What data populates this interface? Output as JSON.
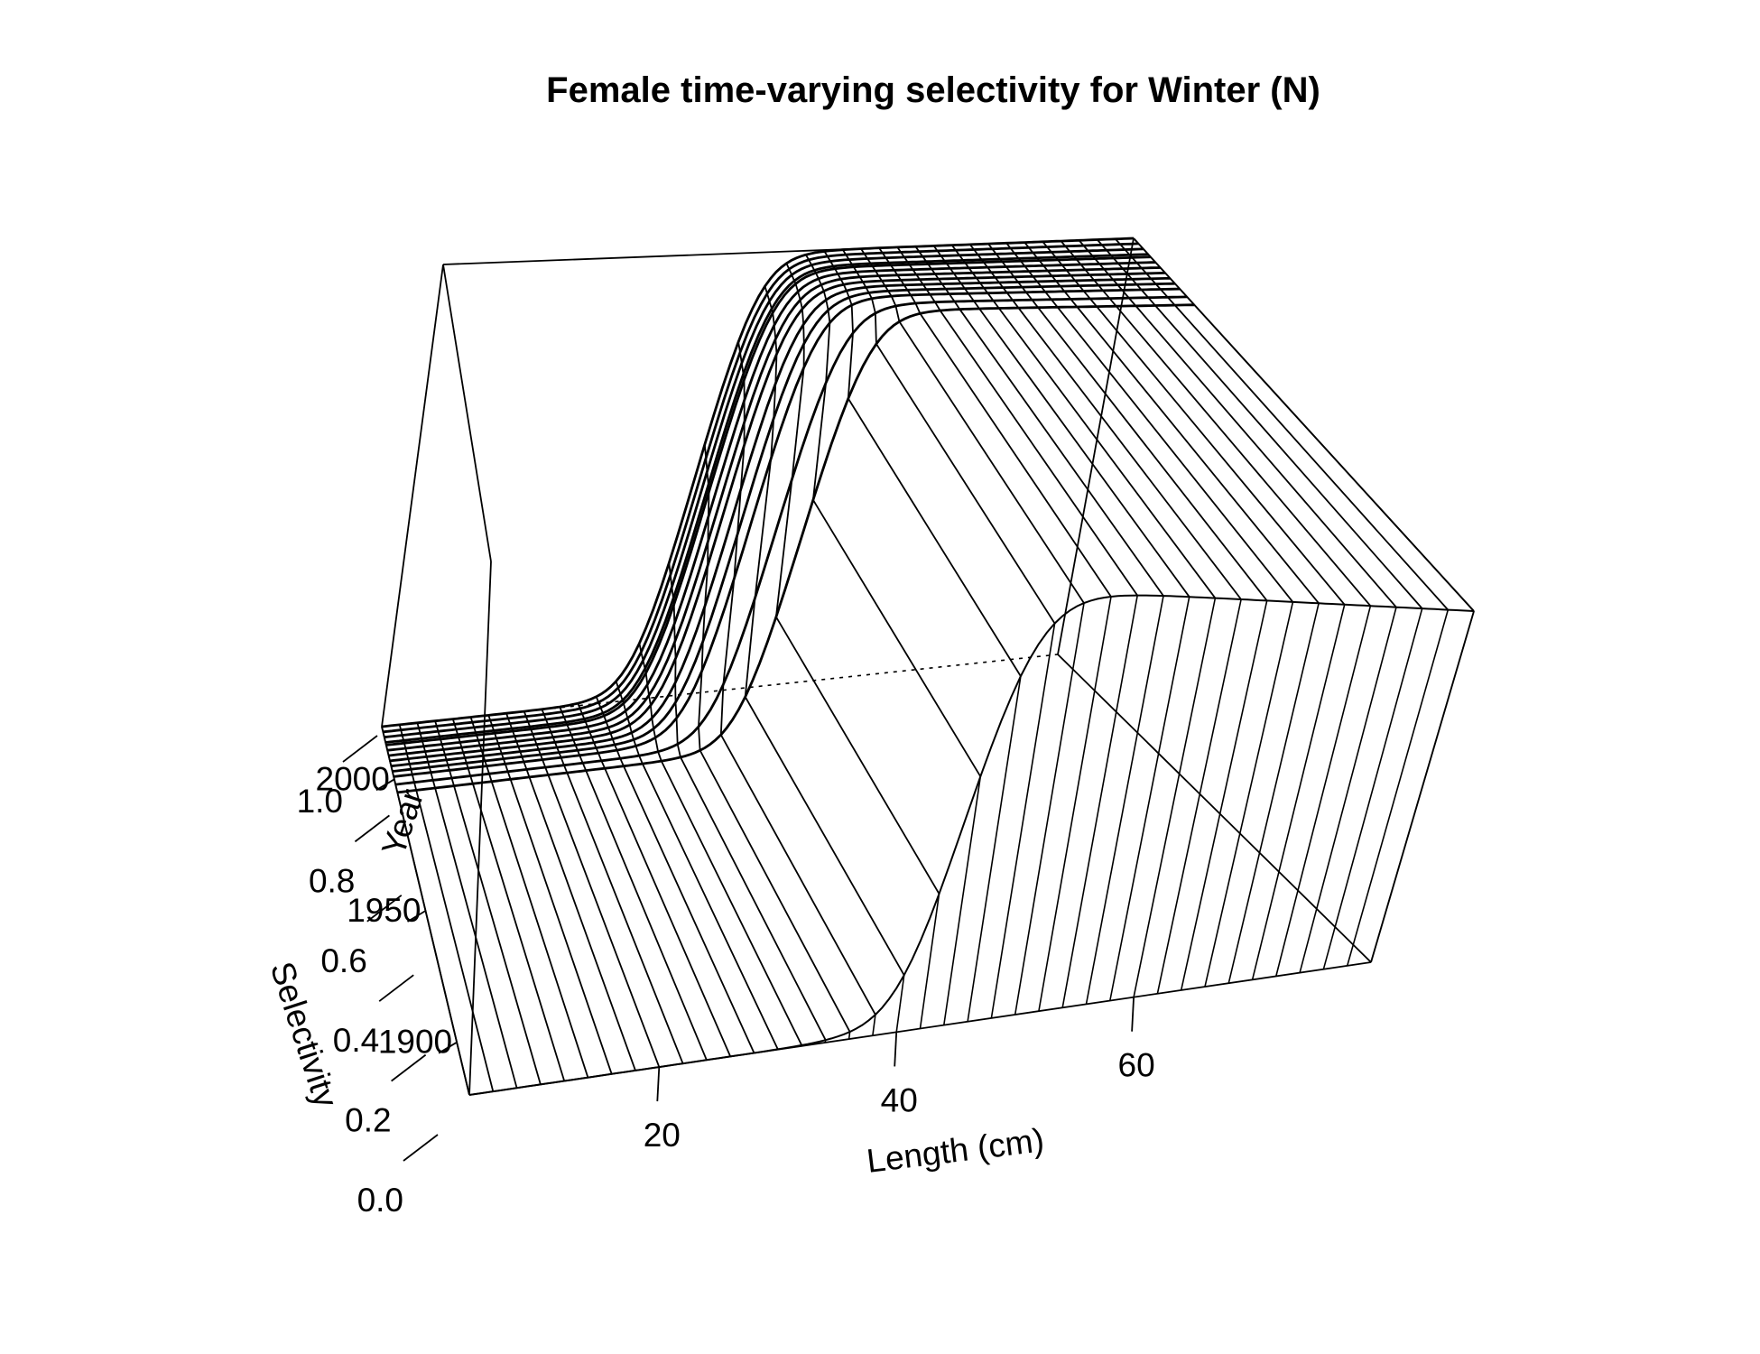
{
  "chart_data": {
    "type": "surface",
    "title": "Female time-varying selectivity for Winter (N)",
    "xlabel": "Length (cm)",
    "ylabel": "Year",
    "zlabel": "Selectivity",
    "xlim": [
      4,
      80
    ],
    "ylim": [
      1880,
      2020
    ],
    "zlim": [
      0,
      1
    ],
    "x_ticks": [
      20,
      40,
      60
    ],
    "y_ticks": [
      1900,
      1950,
      2000
    ],
    "z_ticks": [
      "0.0",
      "0.2",
      "0.4",
      "0.6",
      "0.8",
      "1.0"
    ],
    "length_bins": [
      4,
      6,
      8,
      10,
      12,
      14,
      16,
      18,
      20,
      22,
      24,
      26,
      28,
      30,
      32,
      34,
      36,
      38,
      40,
      42,
      44,
      46,
      48,
      50,
      52,
      54,
      56,
      58,
      60,
      62,
      64,
      66,
      68,
      70,
      72,
      74,
      76,
      78,
      80
    ],
    "year_bins": [
      1880,
      1995,
      1998,
      2001,
      2003,
      2005,
      2007,
      2009,
      2011,
      2013,
      2014,
      2016,
      2018,
      2020
    ],
    "selectivity_curve": {
      "description_free": true,
      "inflection_length_by_year": {
        "1880": 43.5,
        "1995": 43.5,
        "2001": 39,
        "2007": 37,
        "2013": 36,
        "2020": 35.5
      },
      "slope": 0.55
    }
  }
}
